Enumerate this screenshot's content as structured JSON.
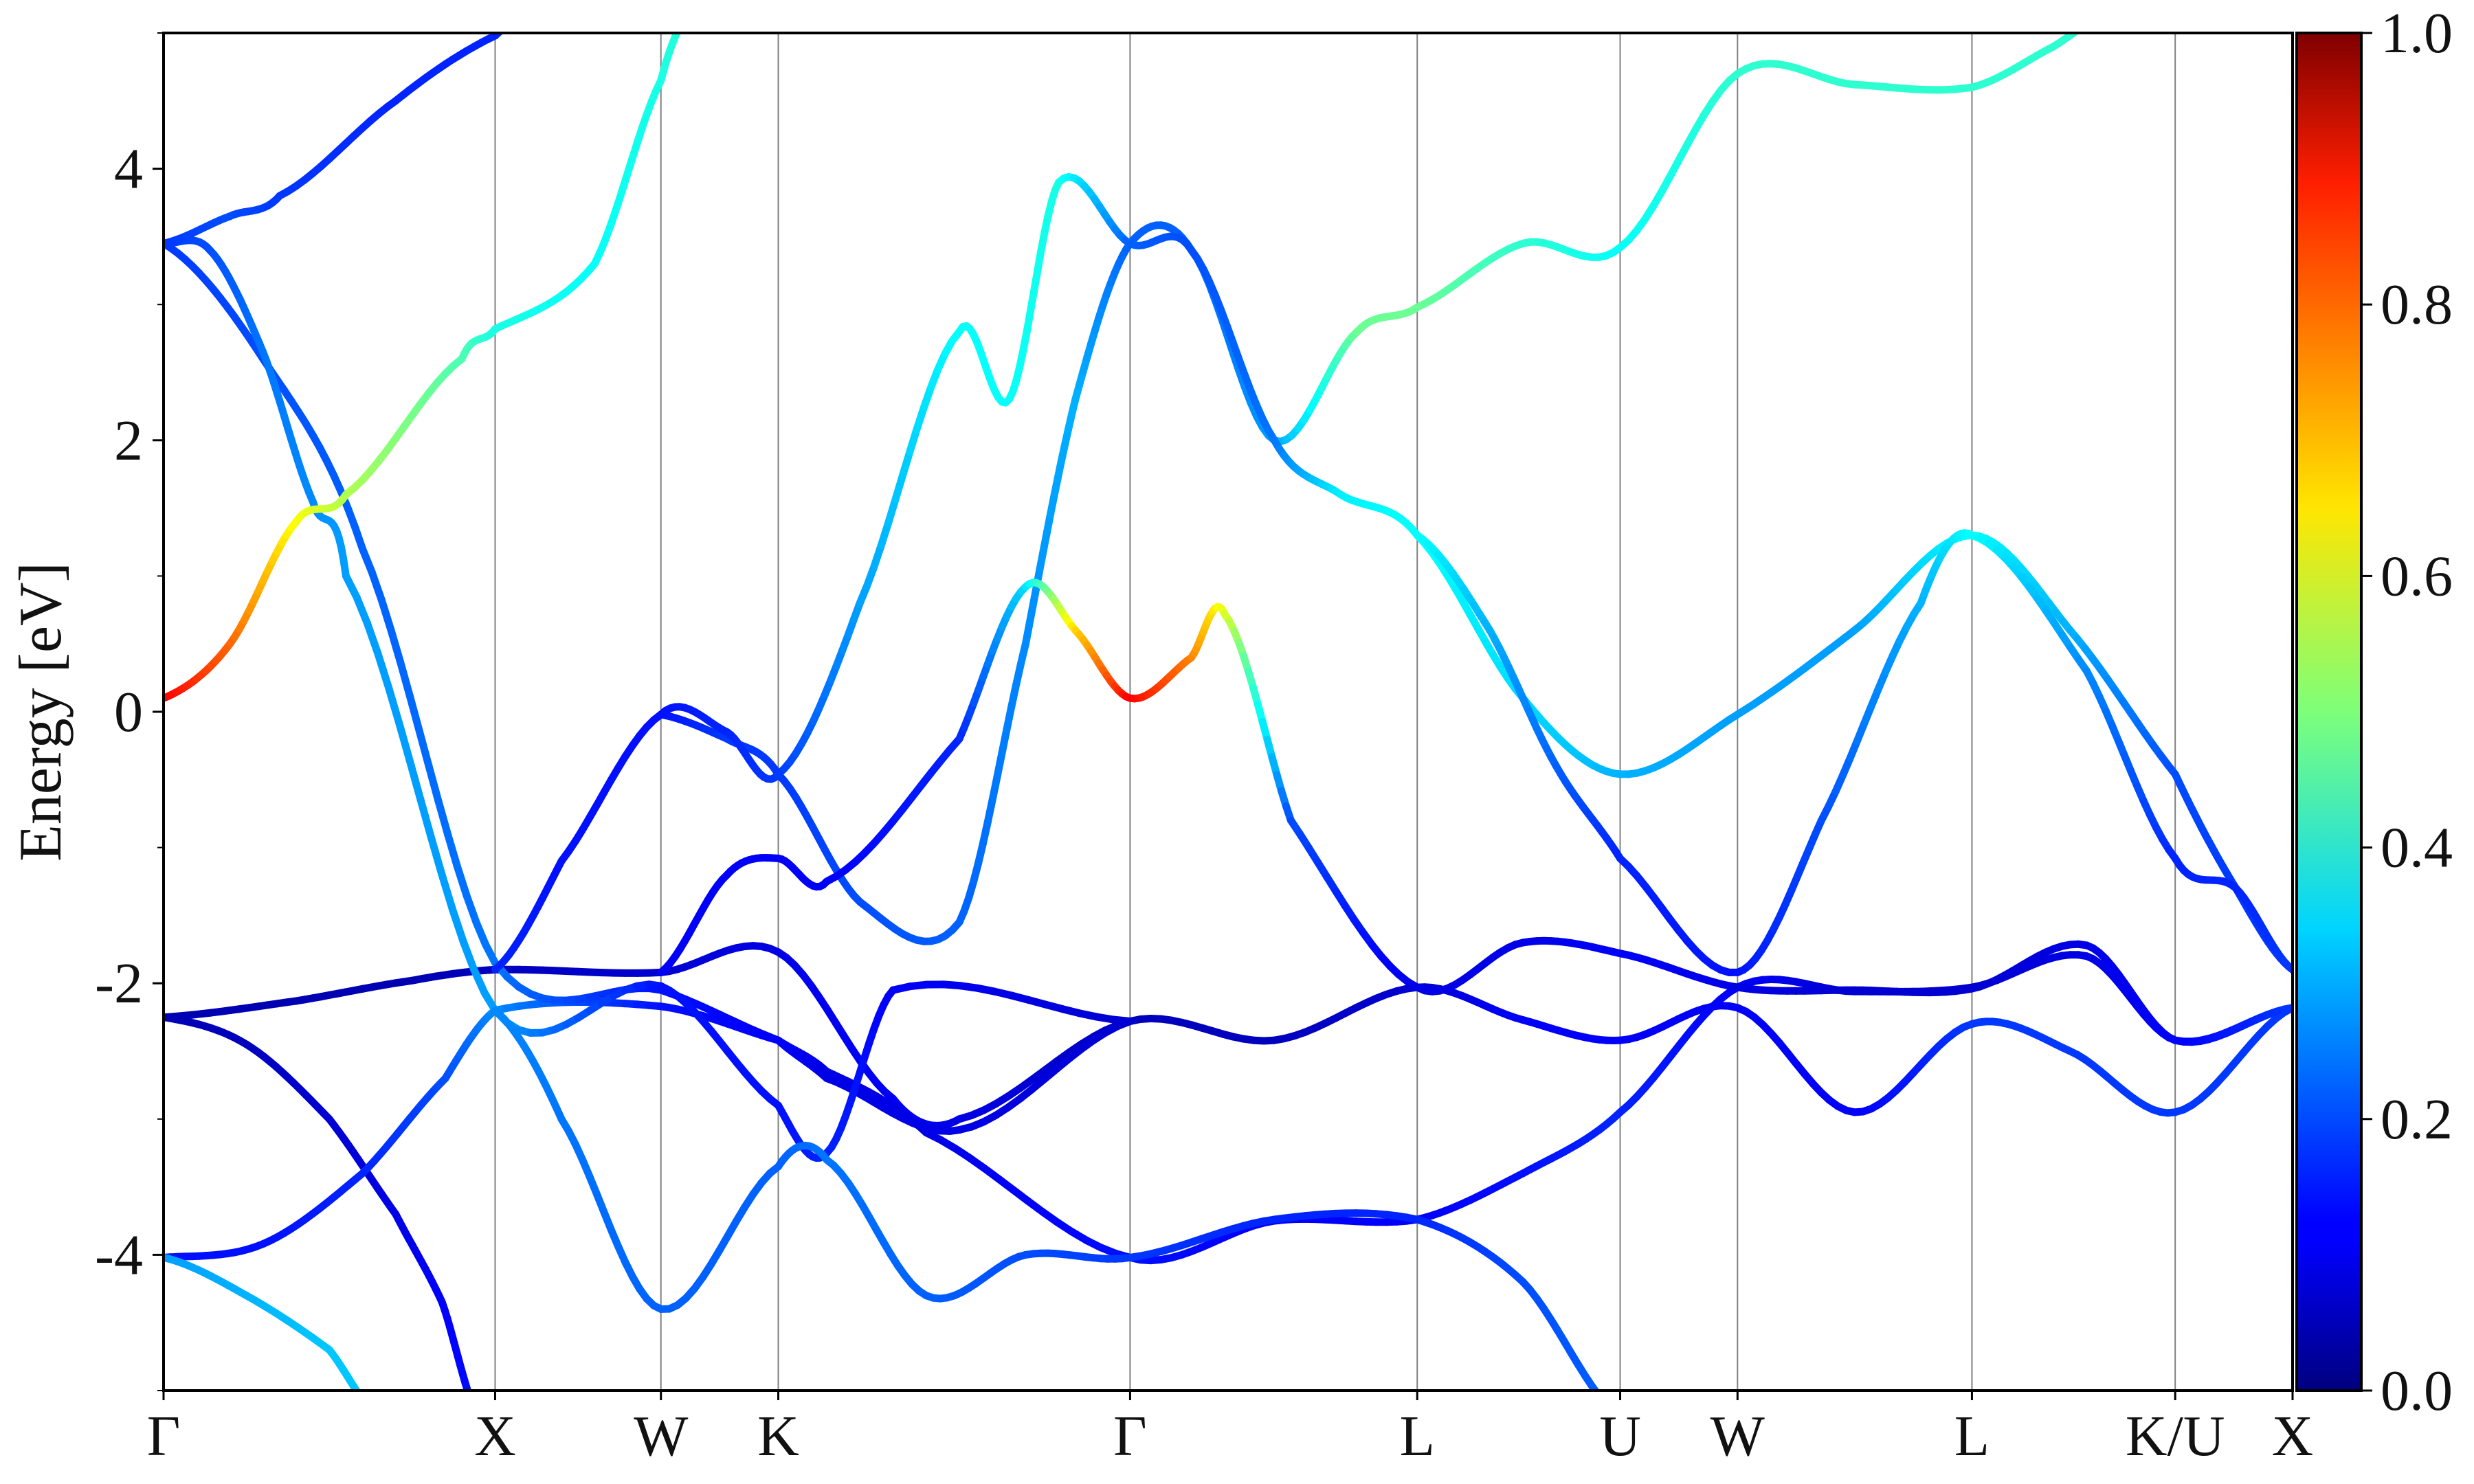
{
  "chart_data": {
    "type": "line",
    "xlabel": "",
    "ylabel": "Energy [eV]",
    "ylim": [
      -5,
      5
    ],
    "yticks": [
      "-4",
      "-2",
      "0",
      "2",
      "4"
    ],
    "y_tick_values": [
      -4,
      -2,
      0,
      2,
      4
    ],
    "y_minor_ticks": [
      -5,
      -3,
      -1,
      1,
      3,
      5
    ],
    "kpoints": [
      {
        "label": "Γ",
        "k": 0
      },
      {
        "label": "X",
        "k": 1
      },
      {
        "label": "W",
        "k": 1.5
      },
      {
        "label": "K",
        "k": 1.854
      },
      {
        "label": "Γ",
        "k": 2.915
      },
      {
        "label": "L",
        "k": 3.781
      },
      {
        "label": "U",
        "k": 4.393
      },
      {
        "label": "W",
        "k": 4.747
      },
      {
        "label": "L",
        "k": 5.454
      },
      {
        "label": "K/U",
        "k": 6.067
      },
      {
        "label": "X",
        "k": 6.421
      }
    ],
    "colorbar": {
      "min": 0,
      "max": 1,
      "ticks": [
        "0.0",
        "0.2",
        "0.4",
        "0.6",
        "0.8",
        "1.0"
      ],
      "tick_values": [
        0,
        0.2,
        0.4,
        0.6,
        0.8,
        1.0
      ],
      "colormap": "jet"
    },
    "series": [
      {
        "points": [
          [
            0,
            -2.25
          ],
          [
            0.4,
            -2.13
          ],
          [
            0.75,
            -1.98
          ],
          [
            1,
            -1.9
          ],
          [
            1.5,
            -1.92
          ],
          [
            1.854,
            -1.77
          ],
          [
            2.2,
            -2.85
          ],
          [
            2.4,
            -3.0
          ],
          [
            2.915,
            -2.28
          ],
          [
            3.35,
            -2.42
          ],
          [
            3.781,
            -2.03
          ],
          [
            4.1,
            -2.27
          ],
          [
            4.393,
            -2.42
          ],
          [
            4.747,
            -2.18
          ],
          [
            5.1,
            -2.95
          ],
          [
            5.454,
            -2.3
          ],
          [
            5.75,
            -2.5
          ],
          [
            6.067,
            -2.95
          ],
          [
            6.421,
            -2.18
          ]
        ],
        "weights": [
          0.05,
          0.05,
          0.05,
          0.06,
          0.08,
          0.1,
          0.12,
          0.1,
          0.06,
          0.06,
          0.08,
          0.12,
          0.12,
          0.12,
          0.12,
          0.18,
          0.18,
          0.18,
          0.18
        ]
      },
      {
        "points": [
          [
            0,
            -2.25
          ],
          [
            0.25,
            -2.45
          ],
          [
            0.5,
            -3.0
          ],
          [
            0.7,
            -3.7
          ],
          [
            0.84,
            -4.35
          ],
          [
            0.95,
            -5.2
          ]
        ],
        "weights": [
          0.05,
          0.06,
          0.08,
          0.1,
          0.12,
          0.14
        ]
      },
      {
        "points": [
          [
            0,
            -4.02
          ],
          [
            0.3,
            -3.92
          ],
          [
            0.6,
            -3.4
          ],
          [
            0.85,
            -2.7
          ],
          [
            1,
            -2.2
          ],
          [
            1.5,
            -2.17
          ],
          [
            1.854,
            -2.42
          ],
          [
            2.0,
            -2.65
          ],
          [
            2.3,
            -3.1
          ],
          [
            2.915,
            -4.02
          ],
          [
            3.35,
            -3.75
          ],
          [
            3.781,
            -3.74
          ],
          [
            4.1,
            -3.4
          ],
          [
            4.393,
            -2.95
          ],
          [
            4.747,
            -2.03
          ],
          [
            5.1,
            -2.06
          ],
          [
            5.454,
            -2.03
          ],
          [
            5.8,
            -1.8
          ],
          [
            6.067,
            -2.42
          ],
          [
            6.421,
            -2.18
          ]
        ],
        "weights": [
          0.14,
          0.14,
          0.16,
          0.2,
          0.26,
          0.14,
          0.12,
          0.1,
          0.1,
          0.14,
          0.12,
          0.12,
          0.14,
          0.16,
          0.12,
          0.08,
          0.08,
          0.1,
          0.12,
          0.18
        ]
      },
      {
        "points": [
          [
            0,
            -4.02
          ],
          [
            0.25,
            -4.3
          ],
          [
            0.5,
            -4.7
          ],
          [
            0.65,
            -5.2
          ]
        ],
        "weights": [
          0.28,
          0.3,
          0.32,
          0.32
        ]
      },
      {
        "points": [
          [
            0,
            3.45
          ],
          [
            0.3,
            2.6
          ],
          [
            0.6,
            1.2
          ],
          [
            1,
            -1.85
          ],
          [
            1.5,
            -2.05
          ],
          [
            1.854,
            -2.42
          ],
          [
            2.0,
            -2.7
          ],
          [
            2.4,
            -3.08
          ],
          [
            2.915,
            -2.28
          ]
        ],
        "weights": [
          0.18,
          0.2,
          0.22,
          0.24,
          0.14,
          0.12,
          0.1,
          0.1,
          0.08
        ]
      },
      {
        "points": [
          [
            0,
            3.45
          ],
          [
            0.14,
            3.4
          ],
          [
            0.3,
            2.65
          ],
          [
            0.45,
            1.55
          ],
          [
            0.55,
            1.0
          ],
          [
            1,
            -2.2
          ],
          [
            1.5,
            -2.02
          ],
          [
            1.854,
            -2.9
          ],
          [
            2.0,
            -3.25
          ],
          [
            2.2,
            -2.05
          ],
          [
            2.915,
            -2.28
          ]
        ],
        "weights": [
          0.18,
          0.2,
          0.24,
          0.26,
          0.28,
          0.28,
          0.14,
          0.14,
          0.16,
          0.12,
          0.08
        ]
      },
      {
        "points": [
          [
            0,
            0.1
          ],
          [
            0.2,
            0.5
          ],
          [
            0.4,
            1.4
          ],
          [
            0.55,
            1.6
          ],
          [
            0.9,
            2.6
          ],
          [
            1,
            2.82
          ],
          [
            1.3,
            3.3
          ],
          [
            1.5,
            4.65
          ],
          [
            1.6,
            5.2
          ]
        ],
        "weights": [
          0.88,
          0.78,
          0.62,
          0.55,
          0.45,
          0.4,
          0.38,
          0.4,
          0.42
        ]
      },
      {
        "points": [
          [
            0,
            3.45
          ],
          [
            0.2,
            3.65
          ],
          [
            0.35,
            3.8
          ],
          [
            0.7,
            4.5
          ],
          [
            1,
            4.98
          ],
          [
            1.15,
            5.2
          ]
        ],
        "weights": [
          0.18,
          0.2,
          0.18,
          0.16,
          0.16,
          0.16
        ]
      },
      {
        "points": [
          [
            1,
            -2.2
          ],
          [
            1.2,
            -3.0
          ],
          [
            1.5,
            -4.4
          ],
          [
            1.854,
            -3.35
          ],
          [
            2.0,
            -3.3
          ],
          [
            2.3,
            -4.3
          ],
          [
            2.6,
            -4.0
          ],
          [
            2.915,
            -4.02
          ],
          [
            3.35,
            -3.74
          ],
          [
            3.781,
            -3.74
          ],
          [
            4.1,
            -4.2
          ],
          [
            4.393,
            -5.2
          ]
        ],
        "weights": [
          0.26,
          0.24,
          0.22,
          0.22,
          0.24,
          0.22,
          0.2,
          0.18,
          0.16,
          0.16,
          0.2,
          0.22
        ]
      },
      {
        "points": [
          [
            1.5,
            -0.02
          ],
          [
            1.7,
            -0.2
          ],
          [
            1.854,
            -0.46
          ],
          [
            2.1,
            -1.4
          ],
          [
            2.4,
            -1.55
          ],
          [
            2.6,
            0.5
          ],
          [
            2.75,
            2.3
          ],
          [
            2.915,
            3.45
          ],
          [
            3.1,
            3.4
          ],
          [
            3.35,
            2.0
          ],
          [
            3.6,
            2.8
          ],
          [
            3.781,
            2.98
          ],
          [
            4.1,
            3.45
          ],
          [
            4.393,
            3.42
          ],
          [
            4.747,
            4.7
          ],
          [
            5.1,
            4.62
          ],
          [
            5.454,
            4.6
          ],
          [
            5.7,
            4.9
          ],
          [
            5.9,
            5.2
          ]
        ],
        "weights": [
          0.14,
          0.18,
          0.18,
          0.2,
          0.22,
          0.26,
          0.3,
          0.22,
          0.22,
          0.28,
          0.48,
          0.48,
          0.42,
          0.38,
          0.42,
          0.42,
          0.42,
          0.42,
          0.42
        ]
      },
      {
        "points": [
          [
            1,
            -1.9
          ],
          [
            1.2,
            -1.1
          ],
          [
            1.5,
            -0.02
          ],
          [
            1.7,
            -0.15
          ],
          [
            1.854,
            -0.46
          ],
          [
            2.1,
            0.8
          ],
          [
            2.4,
            2.8
          ],
          [
            2.55,
            2.3
          ],
          [
            2.7,
            3.9
          ],
          [
            2.915,
            3.45
          ],
          [
            3.1,
            3.4
          ],
          [
            3.35,
            2.0
          ],
          [
            3.55,
            1.6
          ],
          [
            3.781,
            1.3
          ],
          [
            4.1,
            0.1
          ],
          [
            4.393,
            -0.46
          ],
          [
            4.747,
            -0.02
          ],
          [
            5.1,
            0.6
          ],
          [
            5.454,
            1.3
          ],
          [
            5.75,
            0.6
          ],
          [
            6.067,
            -0.46
          ],
          [
            6.25,
            -1.3
          ],
          [
            6.421,
            -1.9
          ]
        ],
        "weights": [
          0.16,
          0.14,
          0.14,
          0.16,
          0.18,
          0.28,
          0.38,
          0.38,
          0.4,
          0.22,
          0.2,
          0.24,
          0.36,
          0.38,
          0.34,
          0.3,
          0.28,
          0.28,
          0.38,
          0.3,
          0.2,
          0.18,
          0.18
        ]
      },
      {
        "points": [
          [
            1.5,
            -1.92
          ],
          [
            1.7,
            -1.2
          ],
          [
            1.854,
            -1.08
          ],
          [
            2.0,
            -1.25
          ],
          [
            2.4,
            -0.2
          ],
          [
            2.6,
            0.92
          ],
          [
            2.75,
            0.6
          ],
          [
            2.915,
            0.1
          ],
          [
            3.1,
            0.4
          ],
          [
            3.2,
            0.72
          ],
          [
            3.4,
            -0.8
          ],
          [
            3.781,
            -2.03
          ],
          [
            4.1,
            -1.7
          ],
          [
            4.393,
            -1.78
          ],
          [
            4.747,
            -2.03
          ],
          [
            5.1,
            -2.05
          ],
          [
            5.454,
            -2.04
          ],
          [
            5.8,
            -1.72
          ],
          [
            6.067,
            -2.42
          ],
          [
            6.421,
            -2.18
          ]
        ],
        "weights": [
          0.12,
          0.12,
          0.12,
          0.12,
          0.16,
          0.34,
          0.66,
          0.88,
          0.75,
          0.6,
          0.2,
          0.1,
          0.1,
          0.12,
          0.1,
          0.08,
          0.08,
          0.1,
          0.12,
          0.18
        ]
      },
      {
        "points": [
          [
            3.781,
            1.3
          ],
          [
            4.0,
            0.6
          ],
          [
            4.2,
            -0.4
          ],
          [
            4.393,
            -1.08
          ],
          [
            4.747,
            -1.92
          ],
          [
            5.0,
            -0.8
          ],
          [
            5.3,
            0.8
          ],
          [
            5.454,
            1.3
          ],
          [
            5.8,
            0.3
          ],
          [
            6.067,
            -1.08
          ],
          [
            6.25,
            -1.3
          ],
          [
            6.421,
            -1.9
          ]
        ],
        "weights": [
          0.38,
          0.3,
          0.22,
          0.16,
          0.14,
          0.2,
          0.3,
          0.38,
          0.26,
          0.16,
          0.16,
          0.18
        ]
      }
    ]
  }
}
